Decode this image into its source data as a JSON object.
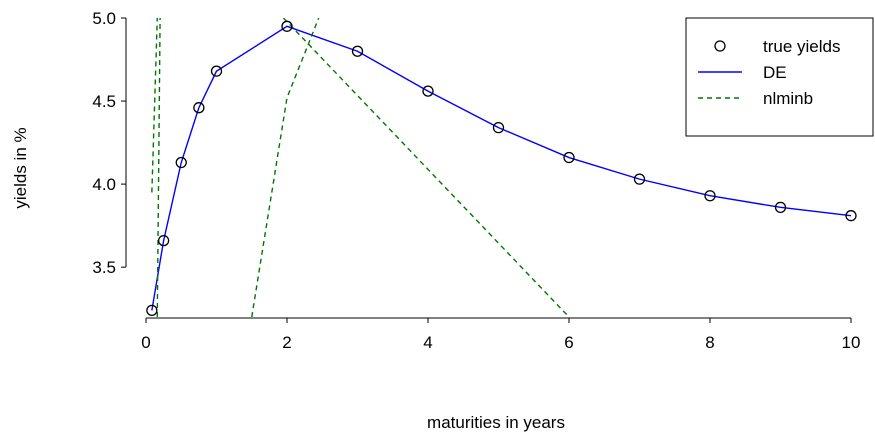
{
  "chart_data": {
    "type": "line",
    "xlabel": "maturities in years",
    "ylabel": "yields in %",
    "xlim": [
      0,
      10
    ],
    "ylim": [
      3.2,
      5.0
    ],
    "xticks": [
      {
        "value": 0,
        "label": "0"
      },
      {
        "value": 2,
        "label": "2"
      },
      {
        "value": 4,
        "label": "4"
      },
      {
        "value": 6,
        "label": "6"
      },
      {
        "value": 8,
        "label": "8"
      },
      {
        "value": 10,
        "label": "10"
      }
    ],
    "yticks": [
      {
        "value": 3.5,
        "label": "3.5"
      },
      {
        "value": 4.0,
        "label": "4.0"
      },
      {
        "value": 4.5,
        "label": "4.5"
      },
      {
        "value": 5.0,
        "label": "5.0"
      }
    ],
    "grid": false,
    "legend_position": "top-right",
    "series": [
      {
        "name": "true yields",
        "style": "markers",
        "color": "#000000",
        "marker": "open-circle",
        "x": [
          0.083,
          0.25,
          0.5,
          0.75,
          1,
          2,
          3,
          4,
          5,
          6,
          7,
          8,
          9,
          10
        ],
        "y": [
          3.24,
          3.66,
          4.13,
          4.46,
          4.68,
          4.95,
          4.8,
          4.56,
          4.34,
          4.16,
          4.03,
          3.93,
          3.86,
          3.81
        ]
      },
      {
        "name": "DE",
        "style": "solid",
        "color": "#0000ff",
        "x": [
          0.083,
          0.25,
          0.5,
          0.75,
          1,
          2,
          3,
          4,
          5,
          6,
          7,
          8,
          9,
          10
        ],
        "y": [
          3.24,
          3.66,
          4.13,
          4.46,
          4.68,
          4.95,
          4.8,
          4.56,
          4.34,
          4.16,
          4.03,
          3.93,
          3.86,
          3.81
        ]
      },
      {
        "name": "nlminb",
        "style": "dashed",
        "color": "#007700",
        "segments": [
          {
            "x": [
              0.083,
              0.16
            ],
            "y": [
              3.95,
              5.0
            ]
          },
          {
            "x": [
              0.16,
              0.2
            ],
            "y": [
              3.2,
              5.0
            ]
          },
          {
            "x": [
              1.5,
              2.0,
              2.45
            ],
            "y": [
              3.2,
              4.52,
              5.0
            ]
          },
          {
            "x": [
              1.95,
              6.0
            ],
            "y": [
              5.0,
              3.2
            ]
          }
        ]
      }
    ]
  }
}
